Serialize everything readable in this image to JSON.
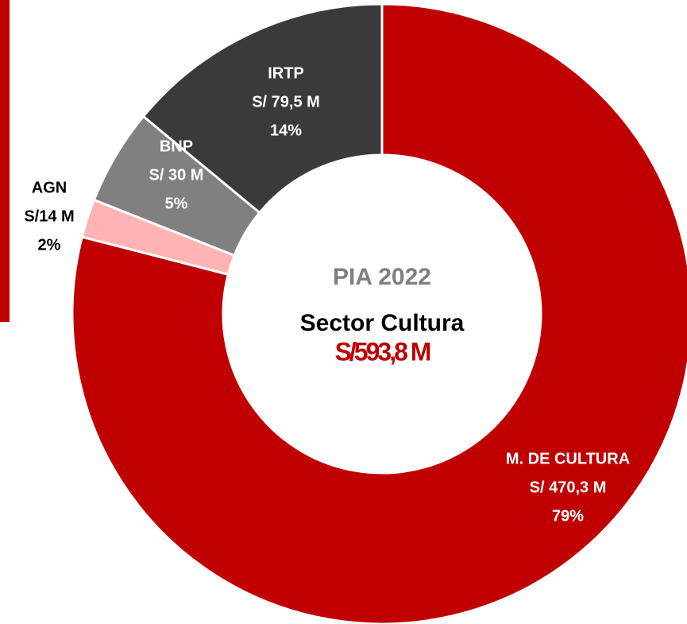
{
  "chart_data": {
    "type": "donut",
    "center_title": "PIA 2022",
    "center_subtitle": "Sector Cultura",
    "center_total": "S/593,8 M",
    "categories": [
      "M. DE CULTURA",
      "AGN",
      "BNP",
      "IRTP"
    ],
    "amount_labels": [
      "S/ 470,3 M",
      "S/14 M",
      "S/ 30 M",
      "S/ 79,5 M"
    ],
    "values": [
      79,
      2,
      5,
      14
    ],
    "value_labels": [
      "79%",
      "2%",
      "5%",
      "14%"
    ],
    "colors": [
      "#c00000",
      "#ffb3b3",
      "#808080",
      "#3a3a3a"
    ],
    "label_colors": [
      "#ffffff",
      "#000000",
      "#ffffff",
      "#ffffff"
    ]
  }
}
